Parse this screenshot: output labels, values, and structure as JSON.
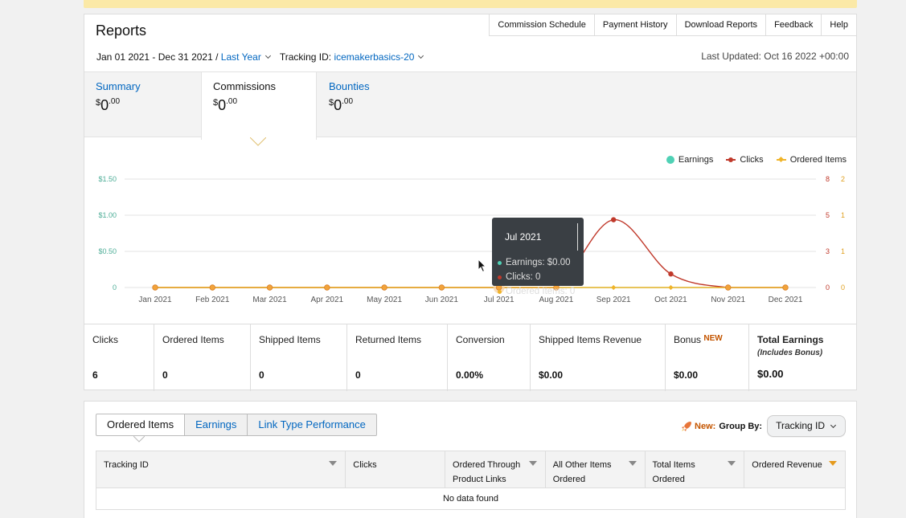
{
  "header": {
    "title": "Reports",
    "links": [
      "Commission Schedule",
      "Payment History",
      "Download Reports",
      "Feedback",
      "Help"
    ],
    "date_range": "Jan 01 2021 - Dec 31 2021 /",
    "range_preset": "Last Year",
    "tracking_label": "Tracking ID:",
    "tracking_id": "icemakerbasics-20",
    "last_updated": "Last Updated: Oct 16 2022 +00:00"
  },
  "tabs": [
    {
      "label": "Summary",
      "currency": "$",
      "whole": "0",
      "cents": ".00"
    },
    {
      "label": "Commissions",
      "currency": "$",
      "whole": "0",
      "cents": ".00"
    },
    {
      "label": "Bounties",
      "currency": "$",
      "whole": "0",
      "cents": ".00"
    }
  ],
  "colors": {
    "earnings": "#4fd1b5",
    "clicks": "#c0392b",
    "ordered": "#f0b429",
    "link": "#0066c0",
    "accent": "#c45500"
  },
  "chart_data": {
    "type": "line",
    "categories": [
      "Jan 2021",
      "Feb 2021",
      "Mar 2021",
      "Apr 2021",
      "May 2021",
      "Jun 2021",
      "Jul 2021",
      "Aug 2021",
      "Sep 2021",
      "Oct 2021",
      "Nov 2021",
      "Dec 2021"
    ],
    "series": [
      {
        "name": "Earnings",
        "axis": "left",
        "values": [
          0,
          0,
          0,
          0,
          0,
          0,
          0,
          0,
          0,
          0,
          0,
          0
        ]
      },
      {
        "name": "Clicks",
        "axis": "right1",
        "values": [
          0,
          0,
          0,
          0,
          0,
          0,
          0,
          0,
          5,
          1,
          0,
          0
        ]
      },
      {
        "name": "Ordered Items",
        "axis": "right2",
        "values": [
          0,
          0,
          0,
          0,
          0,
          0,
          0,
          0,
          0,
          0,
          0,
          0
        ]
      }
    ],
    "left_ticks": [
      "0",
      "$0.50",
      "$1.00",
      "$1.50"
    ],
    "left_range": [
      0,
      1.5
    ],
    "right1_ticks": [
      "0",
      "3",
      "5",
      "8"
    ],
    "right1_range": [
      0,
      8
    ],
    "right2_ticks": [
      "0",
      "1",
      "1",
      "2"
    ],
    "right2_range": [
      0,
      2
    ],
    "legend_position": "top-right",
    "grid": true
  },
  "tooltip": {
    "title": "Jul 2021",
    "rows": [
      "Earnings: $0.00",
      "Clicks: 0",
      "Ordered Items: 0"
    ]
  },
  "stats": [
    {
      "label": "Clicks",
      "value": "6"
    },
    {
      "label": "Ordered Items",
      "value": "0"
    },
    {
      "label": "Shipped Items",
      "value": "0"
    },
    {
      "label": "Returned Items",
      "value": "0"
    },
    {
      "label": "Conversion",
      "value": "0.00%"
    },
    {
      "label": "Shipped Items Revenue",
      "value": "$0.00"
    },
    {
      "label": "Bonus",
      "badge": "NEW",
      "value": "$0.00"
    },
    {
      "label": "Total Earnings",
      "sub": "(Includes Bonus)",
      "value": "$0.00"
    }
  ],
  "bottom": {
    "tabs": [
      "Ordered Items",
      "Earnings",
      "Link Type Performance"
    ],
    "new_label": "New:",
    "group_by_label": "Group By:",
    "group_by_value": "Tracking ID",
    "columns": [
      {
        "label": "Tracking ID",
        "line2": ""
      },
      {
        "label": "Clicks",
        "line2": ""
      },
      {
        "label": "Ordered Through",
        "line2": "Product Links"
      },
      {
        "label": "All Other Items",
        "line2": "Ordered"
      },
      {
        "label": "Total Items",
        "line2": "Ordered"
      },
      {
        "label": "Ordered Revenue",
        "line2": ""
      }
    ],
    "empty_text": "No data found"
  }
}
